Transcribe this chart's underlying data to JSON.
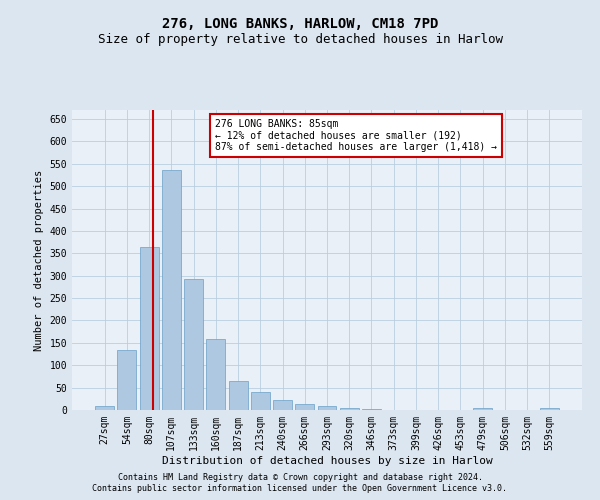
{
  "title1": "276, LONG BANKS, HARLOW, CM18 7PD",
  "title2": "Size of property relative to detached houses in Harlow",
  "xlabel": "Distribution of detached houses by size in Harlow",
  "ylabel": "Number of detached properties",
  "categories": [
    "27sqm",
    "54sqm",
    "80sqm",
    "107sqm",
    "133sqm",
    "160sqm",
    "187sqm",
    "213sqm",
    "240sqm",
    "266sqm",
    "293sqm",
    "320sqm",
    "346sqm",
    "373sqm",
    "399sqm",
    "426sqm",
    "453sqm",
    "479sqm",
    "506sqm",
    "532sqm",
    "559sqm"
  ],
  "values": [
    10,
    135,
    363,
    537,
    292,
    158,
    65,
    40,
    22,
    14,
    8,
    4,
    2,
    1,
    1,
    0,
    0,
    4,
    0,
    0,
    4
  ],
  "bar_color": "#adc8e0",
  "bar_edge_color": "#6aa0c8",
  "vline_color": "#cc0000",
  "annotation_text": "276 LONG BANKS: 85sqm\n← 12% of detached houses are smaller (192)\n87% of semi-detached houses are larger (1,418) →",
  "annotation_box_facecolor": "#ffffff",
  "annotation_box_edgecolor": "#cc0000",
  "ylim": [
    0,
    670
  ],
  "yticks": [
    0,
    50,
    100,
    150,
    200,
    250,
    300,
    350,
    400,
    450,
    500,
    550,
    600,
    650
  ],
  "footer1": "Contains HM Land Registry data © Crown copyright and database right 2024.",
  "footer2": "Contains public sector information licensed under the Open Government Licence v3.0.",
  "bg_color": "#dce6f0",
  "plot_bg_color": "#eaf0f7",
  "title_fontsize": 10,
  "subtitle_fontsize": 9,
  "tick_fontsize": 7,
  "xlabel_fontsize": 8,
  "ylabel_fontsize": 7.5,
  "footer_fontsize": 6,
  "annot_fontsize": 7
}
